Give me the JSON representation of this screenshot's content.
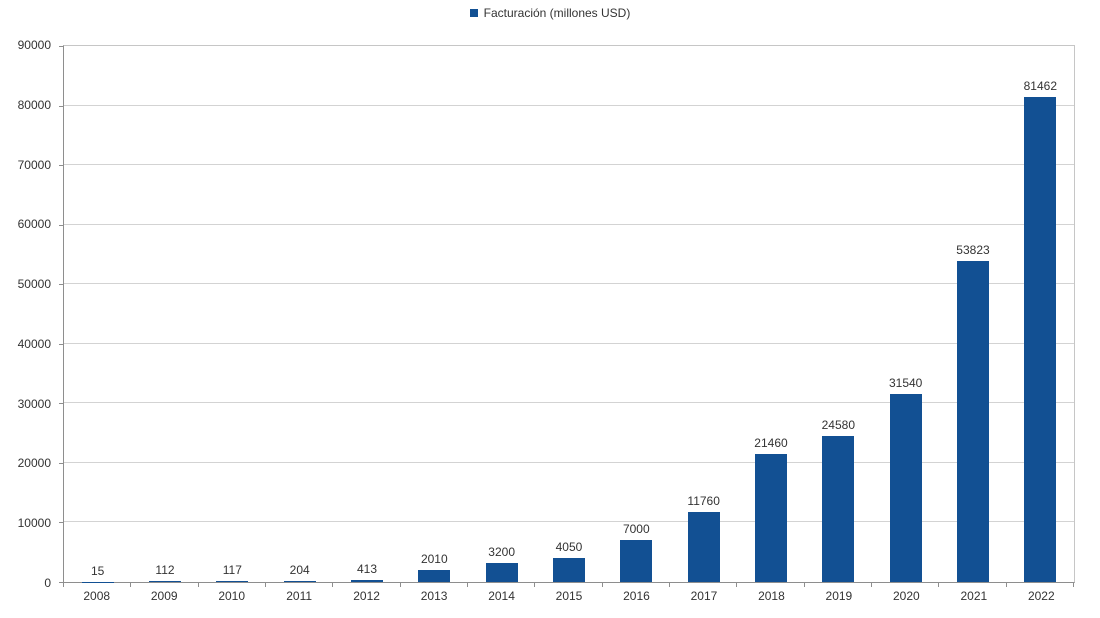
{
  "legend": {
    "label": "Facturación (millones USD)"
  },
  "chart_data": {
    "type": "bar",
    "title": "",
    "categories": [
      "2008",
      "2009",
      "2010",
      "2011",
      "2012",
      "2013",
      "2014",
      "2015",
      "2016",
      "2017",
      "2018",
      "2019",
      "2020",
      "2021",
      "2022"
    ],
    "series": [
      {
        "name": "Facturación (millones USD)",
        "values": [
          15,
          112,
          117,
          204,
          413,
          2010,
          3200,
          4050,
          7000,
          11760,
          21460,
          24580,
          31540,
          53823,
          81462
        ]
      }
    ],
    "xlabel": "",
    "ylabel": "",
    "ylim": [
      0,
      90000
    ],
    "yticks": [
      0,
      10000,
      20000,
      30000,
      40000,
      50000,
      60000,
      70000,
      80000,
      90000
    ],
    "grid": true,
    "legend_position": "top-center",
    "value_labels": true
  },
  "colors": {
    "bar": "#125093",
    "grid": "#d3d3d3",
    "plot_border": "#c6c6c6",
    "axis": "#8e8e8e",
    "text": "#333333",
    "background": "#ffffff"
  }
}
